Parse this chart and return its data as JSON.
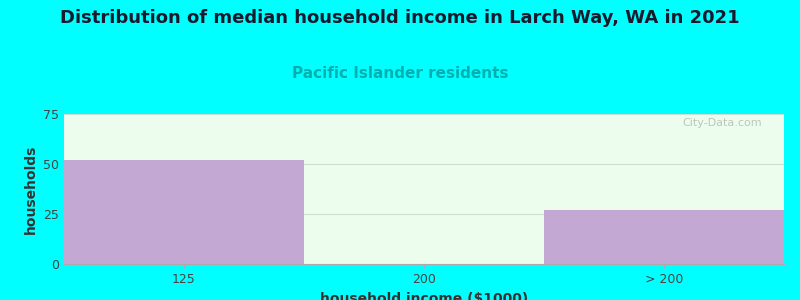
{
  "title": "Distribution of median household income in Larch Way, WA in 2021",
  "subtitle": "Pacific Islander residents",
  "categories": [
    "125",
    "200",
    "> 200"
  ],
  "values": [
    52,
    0,
    27
  ],
  "bar_color": "#c4a8d4",
  "background_color": "#00FFFF",
  "plot_bg_color": "#edfded",
  "xlabel": "household income ($1000)",
  "ylabel": "households",
  "ylim": [
    0,
    75
  ],
  "yticks": [
    0,
    25,
    50,
    75
  ],
  "title_fontsize": 13,
  "subtitle_fontsize": 11,
  "subtitle_color": "#00b0b0",
  "axis_label_fontsize": 10,
  "tick_fontsize": 9,
  "watermark": "City-Data.com",
  "grid_color": "#e0e8e0",
  "title_color": "#1a1a2e"
}
